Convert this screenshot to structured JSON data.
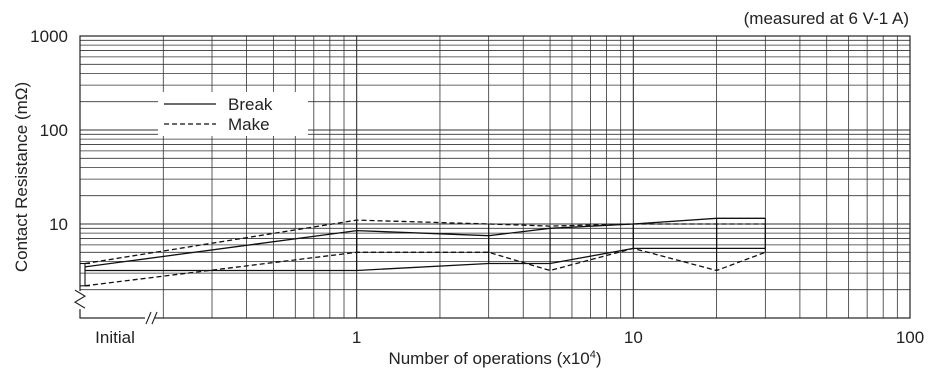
{
  "chart_data": {
    "type": "line",
    "note": "(measured at 6 V-1 A)",
    "xlabel": "Number of operations (x10⁴)",
    "ylabel": "Contact Resistance (mΩ)",
    "x_scale": "log",
    "y_scale": "log",
    "xlim": [
      0.1,
      100
    ],
    "ylim": [
      1,
      1000
    ],
    "x_ticks": [
      {
        "value": 0.1,
        "label": "Initial"
      },
      {
        "value": 1,
        "label": "1"
      },
      {
        "value": 10,
        "label": "10"
      },
      {
        "value": 100,
        "label": "100"
      }
    ],
    "y_ticks": [
      {
        "value": 10,
        "label": "10"
      },
      {
        "value": 100,
        "label": "100"
      },
      {
        "value": 1000,
        "label": "1000"
      }
    ],
    "grid": true,
    "axis_break": true,
    "legend": {
      "position": "upper-left"
    },
    "series": [
      {
        "name": "Break",
        "style": "solid",
        "x": [
          0.1,
          1,
          3,
          5,
          10,
          20,
          30
        ],
        "max": [
          3.5,
          8.5,
          7.5,
          9,
          10,
          11.5,
          11.5
        ],
        "min": [
          3.2,
          3.2,
          3.8,
          3.8,
          5.5,
          5.5,
          5.5
        ]
      },
      {
        "name": "Make",
        "style": "dashed",
        "x": [
          0.1,
          1,
          3,
          5,
          10,
          20,
          30
        ],
        "max": [
          3.8,
          11,
          10,
          9.5,
          10,
          10,
          10
        ],
        "min": [
          2.2,
          5,
          5,
          3.2,
          5.5,
          3.2,
          5
        ]
      }
    ]
  }
}
